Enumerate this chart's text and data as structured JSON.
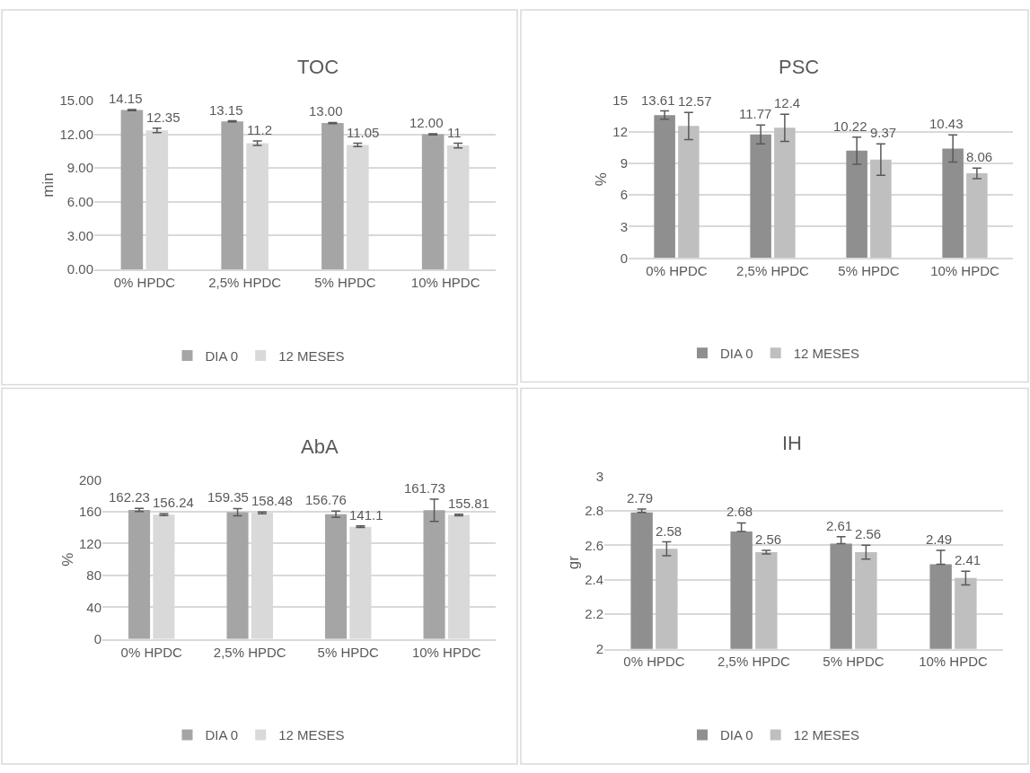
{
  "chart_data": [
    {
      "type": "bar",
      "title": "TOC",
      "ylabel": "min",
      "categories": [
        "0% HPDC",
        "2,5% HPDC",
        "5% HPDC",
        "10% HPDC"
      ],
      "series": [
        {
          "name": "DIA 0",
          "color": "#a5a5a5",
          "values": [
            14.15,
            13.15,
            13.0,
            12.0
          ],
          "errors": [
            0.05,
            0.05,
            0.05,
            0.05
          ],
          "value_labels": [
            "14.15",
            "13.15",
            "13.00",
            "12.00"
          ]
        },
        {
          "name": "12 MESES",
          "color": "#d9d9d9",
          "values": [
            12.35,
            11.2,
            11.05,
            11
          ],
          "errors": [
            0.2,
            0.2,
            0.15,
            0.2
          ],
          "value_labels": [
            "12.35",
            "11.2",
            "11.05",
            "11"
          ]
        }
      ],
      "ylim": [
        0,
        15
      ],
      "yticks": [
        {
          "value": 0,
          "label": "0.00"
        },
        {
          "value": 3,
          "label": "3.00"
        },
        {
          "value": 6,
          "label": "6.00"
        },
        {
          "value": 9,
          "label": "9.00"
        },
        {
          "value": 12,
          "label": "12.00"
        },
        {
          "value": 15,
          "label": "15.00"
        }
      ],
      "grid": "y",
      "legend": "bottom"
    },
    {
      "type": "bar",
      "title": "PSC",
      "ylabel": "%",
      "categories": [
        "0% HPDC",
        "2,5% HPDC",
        "5% HPDC",
        "10% HPDC"
      ],
      "series": [
        {
          "name": "DIA 0",
          "color": "#8f8f8f",
          "values": [
            13.61,
            11.77,
            10.22,
            10.43
          ],
          "errors": [
            0.4,
            0.9,
            1.3,
            1.3
          ],
          "value_labels": [
            "13.61",
            "11.77",
            "10.22",
            "10.43"
          ]
        },
        {
          "name": "12 MESES",
          "color": "#bfbfbf",
          "values": [
            12.57,
            12.4,
            9.37,
            8.06
          ],
          "errors": [
            1.3,
            1.3,
            1.5,
            0.5
          ],
          "value_labels": [
            "12.57",
            "12.4",
            "9.37",
            "8.06"
          ]
        }
      ],
      "ylim": [
        0,
        15
      ],
      "yticks": [
        0,
        3,
        6,
        9,
        12,
        15
      ],
      "grid": "y",
      "legend": "bottom"
    },
    {
      "type": "bar",
      "title": "AbA",
      "ylabel": "%",
      "categories": [
        "0% HPDC",
        "2,5% HPDC",
        "5% HPDC",
        "10% HPDC"
      ],
      "series": [
        {
          "name": "DIA 0",
          "color": "#a5a5a5",
          "values": [
            162.23,
            159.35,
            156.76,
            161.73
          ],
          "errors": [
            2,
            4.5,
            4,
            14
          ],
          "value_labels": [
            "162.23",
            "159.35",
            "156.76",
            "161.73"
          ]
        },
        {
          "name": "12 MESES",
          "color": "#d9d9d9",
          "values": [
            156.24,
            158.48,
            141.1,
            155.81
          ],
          "errors": [
            1,
            1,
            1,
            1
          ],
          "value_labels": [
            "156.24",
            "158.48",
            "141.1",
            "155.81"
          ]
        }
      ],
      "ylim": [
        0,
        200
      ],
      "yticks": [
        0,
        40,
        80,
        120,
        160,
        200
      ],
      "grid": "y",
      "legend": "bottom"
    },
    {
      "type": "bar",
      "title": "IH",
      "ylabel": "gr",
      "categories": [
        "0% HPDC",
        "2,5% HPDC",
        "5% HPDC",
        "10% HPDC"
      ],
      "series": [
        {
          "name": "DIA 0",
          "color": "#8f8f8f",
          "values": [
            2.79,
            2.68,
            2.61,
            2.49
          ],
          "errors": [
            [
              2.79,
              2.81
            ],
            [
              2.68,
              2.73
            ],
            [
              2.61,
              2.65
            ],
            [
              2.49,
              2.57
            ]
          ],
          "value_labels": [
            "2.79",
            "2.68",
            "2.61",
            "2.49"
          ]
        },
        {
          "name": "12 MESES",
          "color": "#bfbfbf",
          "values": [
            2.58,
            2.56,
            2.56,
            2.41
          ],
          "errors": [
            0.04,
            0.01,
            0.04,
            0.04
          ],
          "value_labels": [
            "2.58",
            "2.56",
            "2.56",
            "2.41"
          ]
        }
      ],
      "ylim": [
        2,
        3
      ],
      "yticks": [
        2,
        2.2,
        2.4,
        2.6,
        2.8,
        3
      ],
      "grid": "y",
      "legend": "bottom"
    }
  ]
}
